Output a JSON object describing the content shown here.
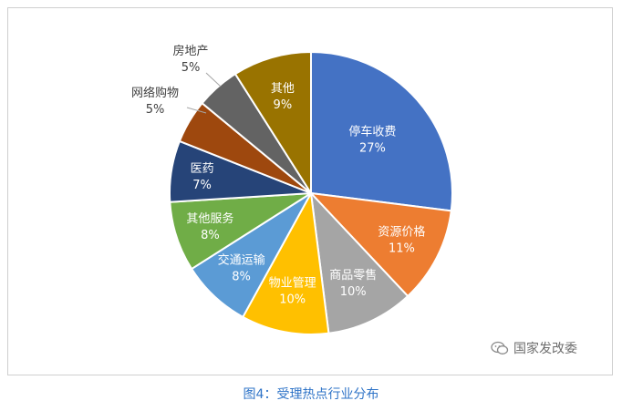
{
  "chart_data": {
    "type": "pie",
    "slices": [
      {
        "label": "停车收费",
        "value": 27,
        "value_label": "27%",
        "color": "#4472c4",
        "label_color": "#ffffff"
      },
      {
        "label": "资源价格",
        "value": 11,
        "value_label": "11%",
        "color": "#ed7d31",
        "label_color": "#ffffff"
      },
      {
        "label": "商品零售",
        "value": 10,
        "value_label": "10%",
        "color": "#a5a5a5",
        "label_color": "#ffffff"
      },
      {
        "label": "物业管理",
        "value": 10,
        "value_label": "10%",
        "color": "#ffc000",
        "label_color": "#ffffff"
      },
      {
        "label": "交通运输",
        "value": 8,
        "value_label": "8%",
        "color": "#5b9bd5",
        "label_color": "#ffffff"
      },
      {
        "label": "其他服务",
        "value": 8,
        "value_label": "8%",
        "color": "#70ad47",
        "label_color": "#ffffff"
      },
      {
        "label": "医药",
        "value": 7,
        "value_label": "7%",
        "color": "#264478",
        "label_color": "#ffffff"
      },
      {
        "label": "网络购物",
        "value": 5,
        "value_label": "5%",
        "color": "#9e480e",
        "label_color": "#404040"
      },
      {
        "label": "房地产",
        "value": 5,
        "value_label": "5%",
        "color": "#636363",
        "label_color": "#404040"
      },
      {
        "label": "其他",
        "value": 9,
        "value_label": "9%",
        "color": "#997300",
        "label_color": "#ffffff"
      }
    ]
  },
  "watermark": "国家发改委",
  "caption": "图4：受理热点行业分布"
}
